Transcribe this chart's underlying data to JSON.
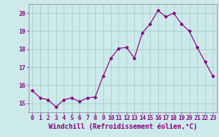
{
  "x": [
    0,
    1,
    2,
    3,
    4,
    5,
    6,
    7,
    8,
    9,
    10,
    11,
    12,
    13,
    14,
    15,
    16,
    17,
    18,
    19,
    20,
    21,
    22,
    23
  ],
  "y": [
    15.7,
    15.3,
    15.2,
    14.8,
    15.2,
    15.3,
    15.1,
    15.3,
    15.35,
    16.5,
    17.5,
    18.05,
    18.1,
    17.5,
    18.9,
    19.4,
    20.15,
    19.8,
    20.0,
    19.4,
    19.0,
    18.1,
    17.3,
    16.5
  ],
  "line_color": "#880088",
  "marker": "D",
  "marker_size": 2,
  "bg_color": "#cceaea",
  "grid_color": "#aacccc",
  "ylabel_ticks": [
    15,
    16,
    17,
    18,
    19,
    20
  ],
  "xlabel": "Windchill (Refroidissement éolien,°C)",
  "xlim": [
    -0.5,
    23.5
  ],
  "ylim": [
    14.5,
    20.5
  ],
  "tick_fontsize": 6,
  "xlabel_fontsize": 7
}
